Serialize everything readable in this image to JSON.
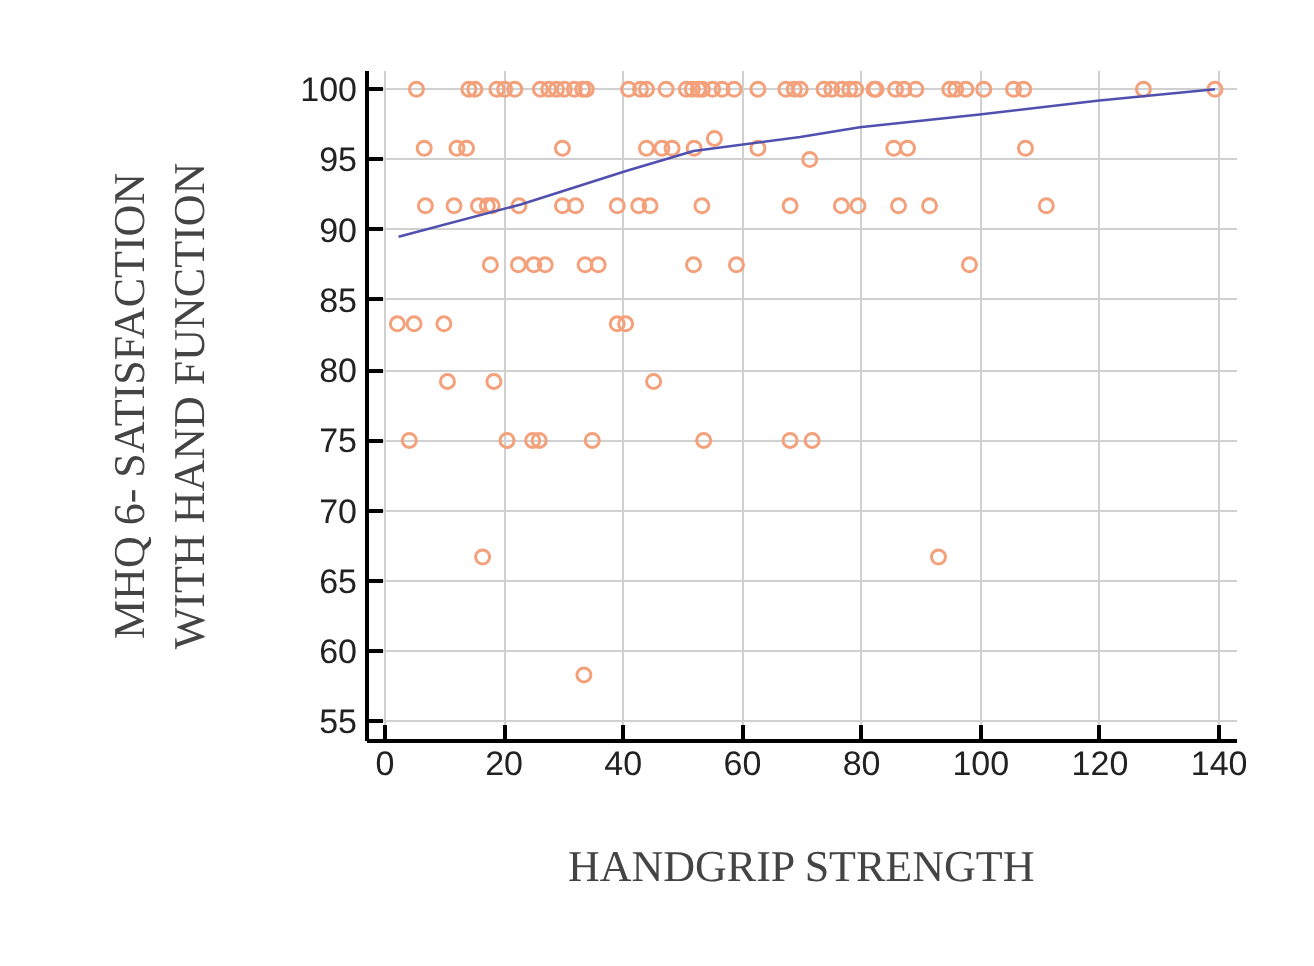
{
  "chart_data": {
    "type": "scatter",
    "xlabel": "HANDGRIP STRENGTH",
    "ylabel": "MHQ 6- SATISFACTION WITH HAND FUNCTION",
    "xlim": [
      -3,
      143
    ],
    "ylim": [
      53.6,
      101.3
    ],
    "xticks": [
      0,
      20,
      40,
      60,
      80,
      100,
      120,
      140
    ],
    "yticks": [
      55,
      60,
      65,
      70,
      75,
      80,
      85,
      90,
      95,
      100
    ],
    "grid": true,
    "series": [
      {
        "color": "#f4a07a",
        "marker": "circle",
        "x": [
          5.3,
          14.1,
          15.1,
          18.8,
          20.1,
          21.8,
          26.1,
          27.5,
          28.8,
          30.1,
          31.8,
          33.2,
          33.8,
          40.9,
          42.9,
          43.9,
          47.2,
          50.6,
          51.6,
          52.6,
          53.3,
          55.0,
          56.6,
          58.6,
          62.6,
          67.3,
          68.7,
          69.7,
          73.7,
          75.0,
          76.7,
          78.0,
          79.0,
          82.1,
          82.4,
          85.7,
          87.1,
          89.1,
          94.8,
          95.8,
          97.5,
          100.5,
          105.5,
          107.2,
          127.3,
          139.3,
          6.6,
          12.1,
          13.7,
          29.8,
          43.9,
          46.5,
          48.2,
          51.9,
          62.6,
          85.4,
          87.7,
          107.5,
          55.3,
          71.3,
          6.8,
          11.6,
          15.7,
          17.2,
          18.0,
          22.5,
          29.8,
          32.0,
          39.0,
          42.6,
          44.5,
          53.2,
          68.0,
          76.6,
          79.4,
          86.2,
          91.4,
          111.0,
          17.7,
          22.4,
          25.0,
          26.9,
          33.6,
          35.8,
          51.8,
          59.0,
          98.1,
          2.1,
          4.9,
          9.9,
          39.0,
          40.4,
          10.5,
          18.3,
          45.1,
          4.1,
          20.5,
          24.8,
          25.9,
          34.8,
          53.5,
          68.0,
          71.7,
          16.4,
          92.9,
          33.4
        ],
        "values": [
          100,
          100,
          100,
          100,
          100,
          100,
          100,
          100,
          100,
          100,
          100,
          100,
          100,
          100,
          100,
          100,
          100,
          100,
          100,
          100,
          100,
          100,
          100,
          100,
          100,
          100,
          100,
          100,
          100,
          100,
          100,
          100,
          100,
          100,
          100,
          100,
          100,
          100,
          100,
          100,
          100,
          100,
          100,
          100,
          100,
          100,
          95.8,
          95.8,
          95.8,
          95.8,
          95.8,
          95.8,
          95.8,
          95.8,
          95.8,
          95.8,
          95.8,
          95.8,
          96.5,
          95,
          91.7,
          91.7,
          91.7,
          91.7,
          91.7,
          91.7,
          91.7,
          91.7,
          91.7,
          91.7,
          91.7,
          91.7,
          91.7,
          91.7,
          91.7,
          91.7,
          91.7,
          91.7,
          87.5,
          87.5,
          87.5,
          87.5,
          87.5,
          87.5,
          87.5,
          87.5,
          87.5,
          83.3,
          83.3,
          83.3,
          83.3,
          83.3,
          79.2,
          79.2,
          79.2,
          75,
          75,
          75,
          75,
          75,
          75,
          75,
          75,
          66.7,
          66.7,
          58.3
        ]
      },
      {
        "type": "line",
        "color": "#5050b0",
        "line_style": "solid",
        "x": [
          2.3,
          22.8,
          40.6,
          51.8,
          69.7,
          79.7,
          99.8,
          119.9,
          139.3
        ],
        "values": [
          89.5,
          91.8,
          94.2,
          95.6,
          96.6,
          97.3,
          98.2,
          99.2,
          100
        ]
      }
    ]
  }
}
